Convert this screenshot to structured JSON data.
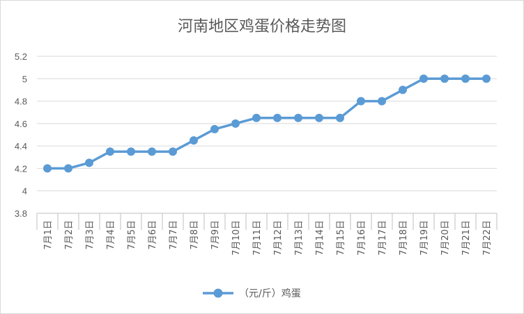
{
  "chart_data": {
    "type": "line",
    "title": "河南地区鸡蛋价格走势图",
    "categories": [
      "7月1日",
      "7月2日",
      "7月3日",
      "7月4日",
      "7月5日",
      "7月6日",
      "7月7日",
      "7月8日",
      "7月9日",
      "7月10日",
      "7月11日",
      "7月12日",
      "7月13日",
      "7月14日",
      "7月15日",
      "7月16日",
      "7月17日",
      "7月18日",
      "7月19日",
      "7月20日",
      "7月21日",
      "7月22日"
    ],
    "series": [
      {
        "name": "（元/斤）鸡蛋",
        "values": [
          4.2,
          4.2,
          4.25,
          4.35,
          4.35,
          4.35,
          4.35,
          4.45,
          4.55,
          4.6,
          4.65,
          4.65,
          4.65,
          4.65,
          4.65,
          4.8,
          4.8,
          4.9,
          5.0,
          5.0,
          5.0,
          5.0
        ],
        "color": "#5b9bd5"
      }
    ],
    "ylim": [
      3.8,
      5.2
    ],
    "yticks": [
      "3.8",
      "4",
      "4.2",
      "4.4",
      "4.6",
      "4.8",
      "5",
      "5.2"
    ],
    "grid": true,
    "legend_position": "bottom"
  }
}
